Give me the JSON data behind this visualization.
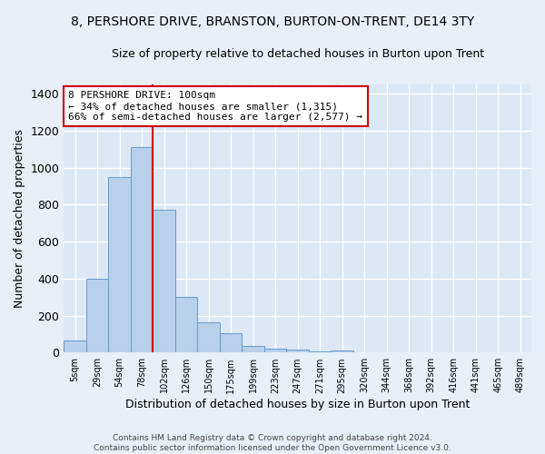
{
  "title_line1": "8, PERSHORE DRIVE, BRANSTON, BURTON-ON-TRENT, DE14 3TY",
  "title_line2": "Size of property relative to detached houses in Burton upon Trent",
  "xlabel": "Distribution of detached houses by size in Burton upon Trent",
  "ylabel": "Number of detached properties",
  "footer_line1": "Contains HM Land Registry data © Crown copyright and database right 2024.",
  "footer_line2": "Contains public sector information licensed under the Open Government Licence v3.0.",
  "bar_labels": [
    "5sqm",
    "29sqm",
    "54sqm",
    "78sqm",
    "102sqm",
    "126sqm",
    "150sqm",
    "175sqm",
    "199sqm",
    "223sqm",
    "247sqm",
    "271sqm",
    "295sqm",
    "320sqm",
    "344sqm",
    "368sqm",
    "392sqm",
    "416sqm",
    "441sqm",
    "465sqm",
    "489sqm"
  ],
  "bar_values": [
    65,
    400,
    950,
    1110,
    775,
    300,
    165,
    105,
    35,
    20,
    15,
    5,
    10,
    0,
    0,
    0,
    0,
    0,
    0,
    0,
    0
  ],
  "bar_color": "#b8d0ea",
  "bar_edge_color": "#6699cc",
  "vline_color": "#cc0000",
  "annotation_text": "8 PERSHORE DRIVE: 100sqm\n← 34% of detached houses are smaller (1,315)\n66% of semi-detached houses are larger (2,577) →",
  "annotation_box_color": "#ffffff",
  "annotation_box_edge": "#cc0000",
  "ylim": [
    0,
    1450
  ],
  "yticks": [
    0,
    200,
    400,
    600,
    800,
    1000,
    1200,
    1400
  ],
  "bg_color": "#e8eff8",
  "plot_bg_color": "#dce8f5",
  "grid_color": "#ffffff",
  "title_fontsize": 10,
  "subtitle_fontsize": 9
}
